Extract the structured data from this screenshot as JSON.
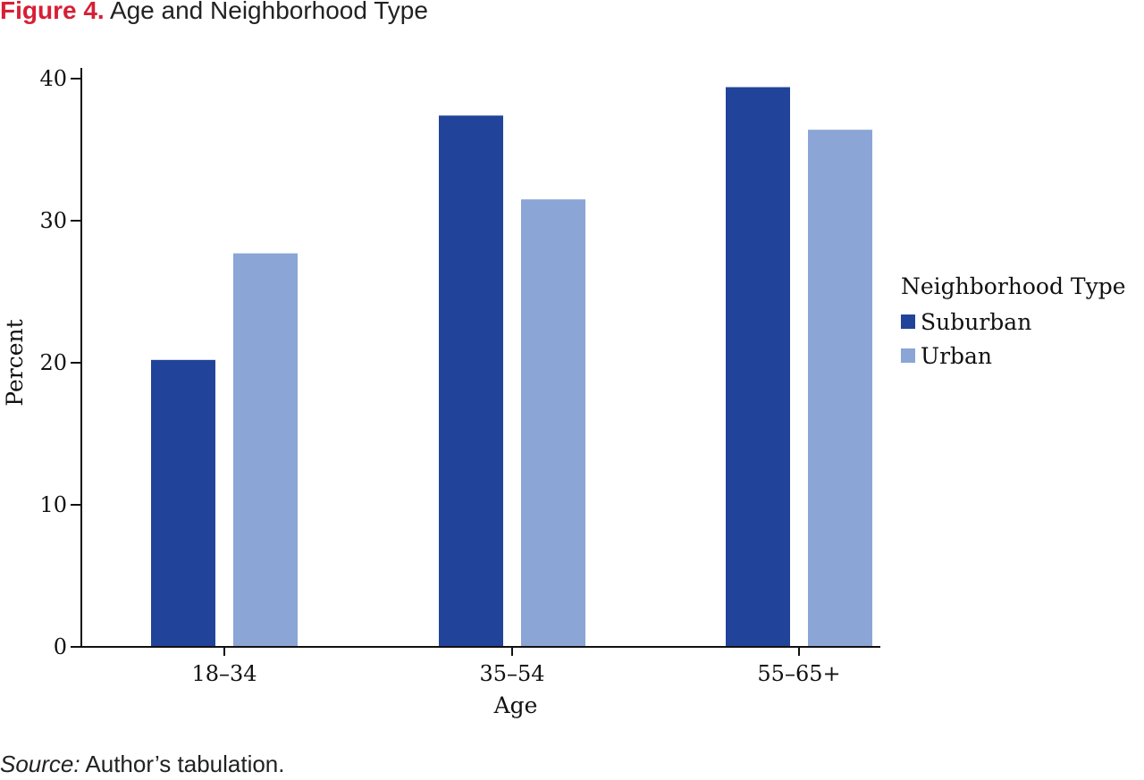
{
  "figure": {
    "label": "Figure 4.",
    "title": "Age and Neighborhood Type"
  },
  "source": {
    "label": "Source:",
    "text": "Author’s tabulation."
  },
  "colors": {
    "suburban": "#21449a",
    "urban": "#8aa5d6",
    "title_accent": "#d61f35"
  },
  "chart_data": {
    "type": "bar",
    "title": "Age and Neighborhood Type",
    "xlabel": "Age",
    "ylabel": "Percent",
    "ylim": [
      0,
      40
    ],
    "yticks": [
      0,
      10,
      20,
      30,
      40
    ],
    "grid": false,
    "legend_placement": "right",
    "legend_title": "Neighborhood Type",
    "categories": [
      "18–34",
      "35–54",
      "55–65+"
    ],
    "series": [
      {
        "name": "Suburban",
        "values": [
          20.2,
          37.4,
          39.4
        ],
        "color": "#21449a"
      },
      {
        "name": "Urban",
        "values": [
          27.7,
          31.5,
          36.4
        ],
        "color": "#8aa5d6"
      }
    ]
  }
}
